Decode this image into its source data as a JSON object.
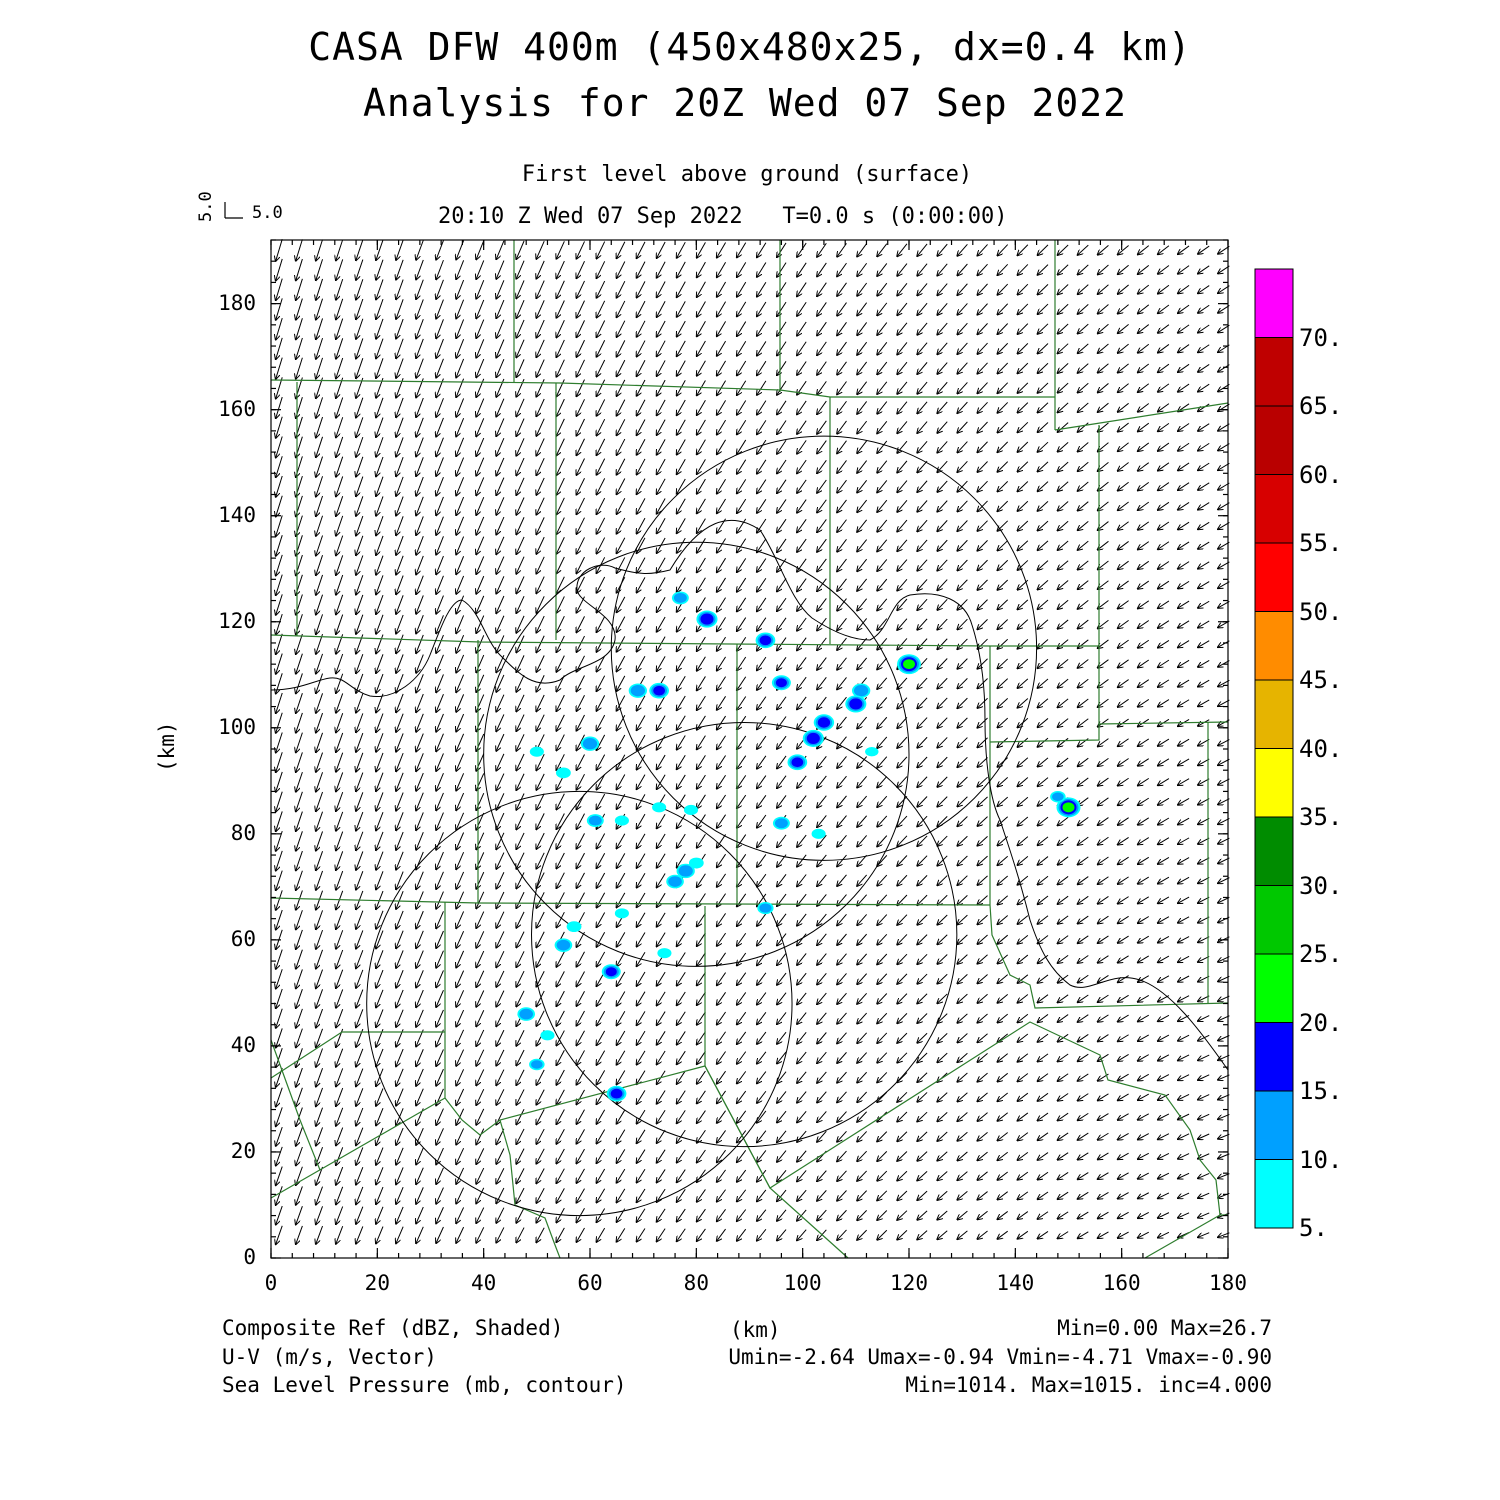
{
  "header": {
    "title_line1": "CASA DFW 400m (450x480x25, dx=0.4 km)",
    "title_line2": "Analysis for 20Z Wed 07 Sep 2022",
    "level": "First level above ground (surface)",
    "time": "20:10 Z Wed 07 Sep 2022   T=0.0 s (0:00:00)",
    "vector_ref_x": "5.0",
    "vector_ref_y": "5.0"
  },
  "axes": {
    "ylabel": "(km)",
    "xlabel": "(km)",
    "x_ticks": [
      "0",
      "20",
      "40",
      "60",
      "80",
      "100",
      "120",
      "140",
      "160",
      "180"
    ],
    "y_ticks": [
      "0",
      "20",
      "40",
      "60",
      "80",
      "100",
      "120",
      "140",
      "160",
      "180"
    ],
    "x_range": [
      0,
      180
    ],
    "y_range": [
      0,
      192
    ]
  },
  "colorbar": {
    "labels": [
      "5.",
      "10.",
      "15.",
      "20.",
      "25.",
      "30.",
      "35.",
      "40.",
      "45.",
      "50.",
      "55.",
      "60.",
      "65.",
      "70."
    ],
    "colors": [
      "#00ffff",
      "#00a0ff",
      "#0000ff",
      "#00ff00",
      "#00c800",
      "#008c00",
      "#ffff00",
      "#e6b400",
      "#ff8c00",
      "#ff0000",
      "#d70000",
      "#b90000",
      "#bf0000",
      "#ff00ff"
    ]
  },
  "footer": {
    "line1_left": "Composite Ref (dBZ, Shaded)",
    "line1_mid": "(km)",
    "line1_right": "Min=0.00 Max=26.7",
    "line2_left": "U-V (m/s, Vector)",
    "line2_right": "Umin=-2.64 Umax=-0.94 Vmin=-4.71 Vmax=-0.90",
    "line3_left": "Sea Level Pressure (mb, contour)",
    "line3_right": "Min=1014. Max=1015. inc=4.000"
  },
  "radar_circles_km": [
    {
      "cx": 104,
      "cy": 115,
      "r": 40
    },
    {
      "cx": 80,
      "cy": 95,
      "r": 40
    },
    {
      "cx": 89,
      "cy": 61,
      "r": 40
    },
    {
      "cx": 58,
      "cy": 48,
      "r": 40
    }
  ],
  "echoes": [
    {
      "x": 77,
      "y": 124.5,
      "dbz": 12
    },
    {
      "x": 82,
      "y": 120.5,
      "dbz": 18
    },
    {
      "x": 93,
      "y": 116.5,
      "dbz": 16
    },
    {
      "x": 120,
      "y": 112,
      "dbz": 22
    },
    {
      "x": 69,
      "y": 107,
      "dbz": 14
    },
    {
      "x": 73,
      "y": 107,
      "dbz": 16
    },
    {
      "x": 96,
      "y": 108.5,
      "dbz": 15
    },
    {
      "x": 111,
      "y": 107,
      "dbz": 14
    },
    {
      "x": 110,
      "y": 104.5,
      "dbz": 18
    },
    {
      "x": 104,
      "y": 101,
      "dbz": 17
    },
    {
      "x": 102,
      "y": 98,
      "dbz": 18
    },
    {
      "x": 99,
      "y": 93.5,
      "dbz": 16
    },
    {
      "x": 60,
      "y": 97,
      "dbz": 14
    },
    {
      "x": 50,
      "y": 95.5,
      "dbz": 8
    },
    {
      "x": 113,
      "y": 95.5,
      "dbz": 7
    },
    {
      "x": 55,
      "y": 91.5,
      "dbz": 9
    },
    {
      "x": 73,
      "y": 85,
      "dbz": 8
    },
    {
      "x": 79,
      "y": 84.5,
      "dbz": 8
    },
    {
      "x": 61,
      "y": 82.5,
      "dbz": 12
    },
    {
      "x": 66,
      "y": 82.5,
      "dbz": 8
    },
    {
      "x": 96,
      "y": 82,
      "dbz": 12
    },
    {
      "x": 103,
      "y": 80,
      "dbz": 8
    },
    {
      "x": 150,
      "y": 85,
      "dbz": 24
    },
    {
      "x": 148,
      "y": 87,
      "dbz": 10
    },
    {
      "x": 80,
      "y": 74.5,
      "dbz": 9
    },
    {
      "x": 78,
      "y": 73,
      "dbz": 14
    },
    {
      "x": 76,
      "y": 71,
      "dbz": 13
    },
    {
      "x": 93,
      "y": 66,
      "dbz": 11
    },
    {
      "x": 66,
      "y": 65,
      "dbz": 8
    },
    {
      "x": 57,
      "y": 62.5,
      "dbz": 9
    },
    {
      "x": 55,
      "y": 59,
      "dbz": 13
    },
    {
      "x": 74,
      "y": 57.5,
      "dbz": 8
    },
    {
      "x": 64,
      "y": 54,
      "dbz": 15
    },
    {
      "x": 48,
      "y": 46,
      "dbz": 13
    },
    {
      "x": 52,
      "y": 42,
      "dbz": 8
    },
    {
      "x": 50,
      "y": 36.5,
      "dbz": 10
    },
    {
      "x": 65,
      "y": 31,
      "dbz": 16
    }
  ]
}
